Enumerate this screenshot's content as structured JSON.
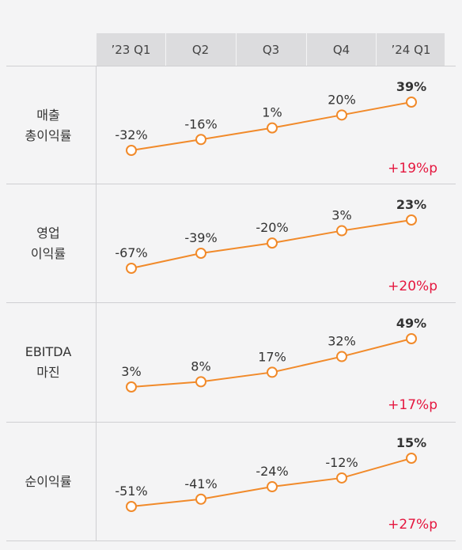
{
  "colors": {
    "line": "#f18a2a",
    "delta": "#e5173f",
    "header_bg": "#dcdcde"
  },
  "chart_data": {
    "type": "line",
    "categories": [
      "’23 Q1",
      "Q2",
      "Q3",
      "Q4",
      "’24 Q1"
    ],
    "unit": "%",
    "panels": [
      {
        "label_lines": [
          "매출",
          "총이익률"
        ],
        "values": [
          -32,
          -16,
          1,
          20,
          39
        ],
        "labels": [
          "-32%",
          "-16%",
          "1%",
          "20%",
          "39%"
        ],
        "change": "+19%p"
      },
      {
        "label_lines": [
          "영업",
          "이익률"
        ],
        "values": [
          -67,
          -39,
          -20,
          3,
          23
        ],
        "labels": [
          "-67%",
          "-39%",
          "-20%",
          "3%",
          "23%"
        ],
        "change": "+20%p"
      },
      {
        "label_lines": [
          "EBITDA",
          "마진"
        ],
        "values": [
          3,
          8,
          17,
          32,
          49
        ],
        "labels": [
          "3%",
          "8%",
          "17%",
          "32%",
          "49%"
        ],
        "change": "+17%p"
      },
      {
        "label_lines": [
          "순이익률"
        ],
        "values": [
          -51,
          -41,
          -24,
          -12,
          15
        ],
        "labels": [
          "-51%",
          "-41%",
          "-24%",
          "-12%",
          "15%"
        ],
        "change": "+27%p"
      }
    ]
  }
}
